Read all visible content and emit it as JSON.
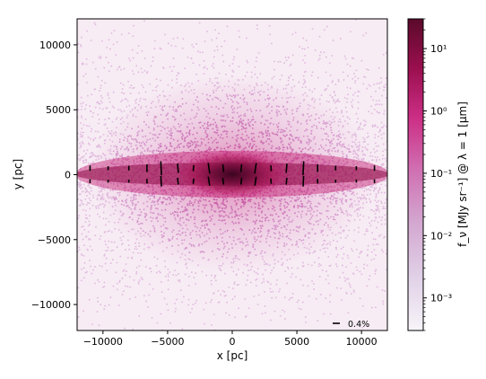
{
  "chart_data": {
    "type": "scatter",
    "xlabel": "x [pc]",
    "ylabel": "y [pc]",
    "xlim": [
      -12000,
      12000
    ],
    "ylim": [
      -12000,
      12000
    ],
    "xticks": [
      -10000,
      -5000,
      0,
      5000,
      10000
    ],
    "xtick_labels": [
      "−10000",
      "−5000",
      "0",
      "5000",
      "10000"
    ],
    "yticks": [
      -10000,
      -5000,
      0,
      5000,
      10000
    ],
    "ytick_labels": [
      "−10000",
      "−5000",
      "0",
      "5000",
      "10000"
    ],
    "colorbar": {
      "label": "f_ν [MJy sr⁻¹] @ λ = 1 [μm]",
      "scale": "log",
      "range": [
        0.0003,
        30
      ],
      "ticks": [
        0.001,
        0.01,
        0.1,
        1,
        10
      ],
      "tick_labels": [
        "10⁻³",
        "10⁻²",
        "10⁻¹",
        "10⁰",
        "10¹"
      ],
      "colors": [
        "#f7f4f9",
        "#e0bfdb",
        "#c992c4",
        "#cf5fa6",
        "#c3196b",
        "#8a0b44",
        "#5a0a2b"
      ]
    },
    "polarization_vectors": {
      "rows_y": [
        500,
        -500
      ],
      "x": [
        -11000,
        -9600,
        -8000,
        -6600,
        -5500,
        -4200,
        -3000,
        -1800,
        -700,
        700,
        1800,
        3000,
        4200,
        5500,
        6600,
        8000,
        9600,
        11000
      ],
      "length_pct_upper": [
        0.35,
        0.25,
        0.3,
        0.5,
        0.9,
        0.6,
        0.4,
        0.7,
        0.5,
        0.5,
        0.7,
        0.4,
        0.6,
        0.9,
        0.5,
        0.3,
        0.25,
        0.35
      ],
      "length_pct_lower": [
        0.25,
        0.2,
        0.2,
        0.3,
        0.7,
        0.45,
        0.35,
        0.6,
        0.45,
        0.45,
        0.6,
        0.35,
        0.45,
        0.7,
        0.3,
        0.2,
        0.2,
        0.25
      ],
      "angle_deg": [
        0,
        0,
        0,
        0,
        3,
        5,
        -4,
        8,
        6,
        -6,
        -8,
        4,
        -5,
        -3,
        0,
        0,
        0,
        0
      ]
    },
    "scale_bar_label": "0.4%",
    "scale_bar_value_pct": 0.4,
    "disk_model": {
      "scale_length_pc": 3000,
      "thin_scale_height_pc": 250,
      "halo_radius_pc": 6000
    }
  }
}
